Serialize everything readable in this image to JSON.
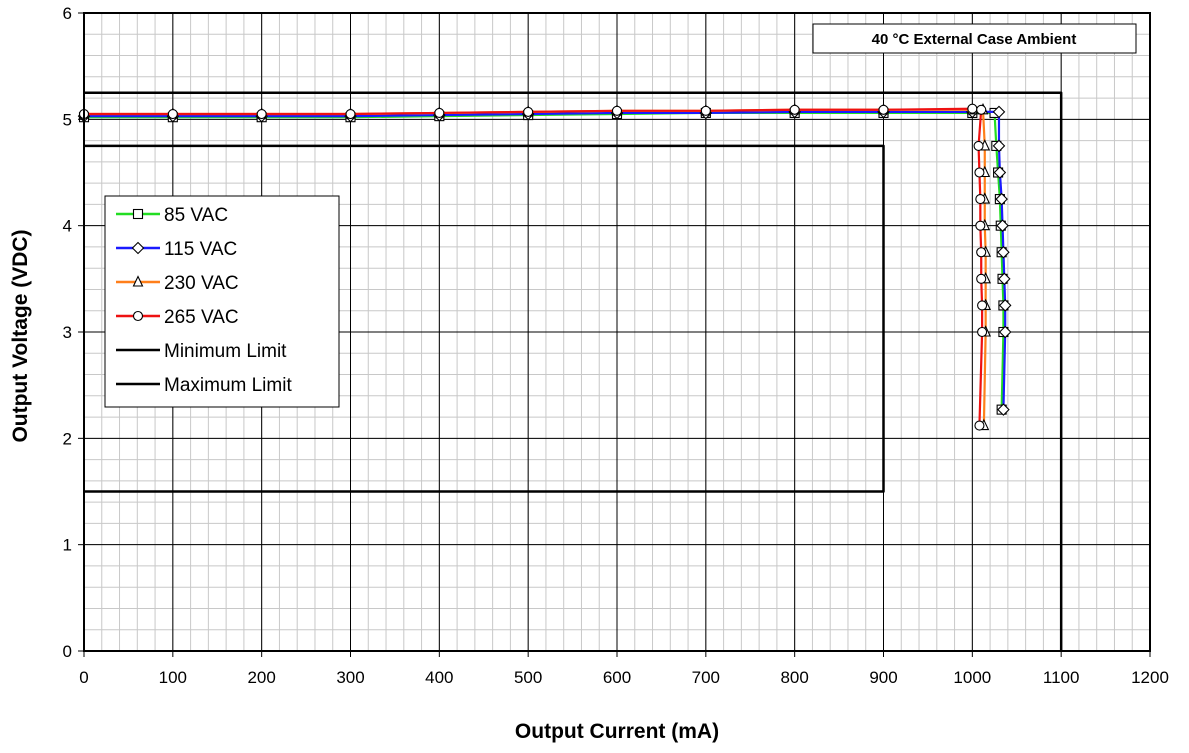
{
  "chart_data": {
    "type": "line",
    "title": "",
    "annotation": "40 °C External Case Ambient",
    "xlabel": "Output Current (mA)",
    "ylabel": "Output Voltage (VDC)",
    "xlim": [
      0,
      1200
    ],
    "ylim": [
      0,
      6
    ],
    "x_ticks": [
      "0",
      "100",
      "200",
      "300",
      "400",
      "500",
      "600",
      "700",
      "800",
      "900",
      "1000",
      "1100",
      "1200"
    ],
    "y_ticks": [
      "0",
      "1",
      "2",
      "3",
      "4",
      "5",
      "6"
    ],
    "grid": true,
    "legend_position": "left",
    "series": [
      {
        "name": "85 VAC",
        "color": "#22dd22",
        "marker": "square",
        "points": [
          [
            0,
            5.02
          ],
          [
            100,
            5.02
          ],
          [
            200,
            5.02
          ],
          [
            300,
            5.02
          ],
          [
            400,
            5.03
          ],
          [
            500,
            5.04
          ],
          [
            600,
            5.05
          ],
          [
            700,
            5.06
          ],
          [
            800,
            5.06
          ],
          [
            900,
            5.06
          ],
          [
            1000,
            5.06
          ],
          [
            1025,
            5.06
          ],
          [
            1027,
            4.75
          ],
          [
            1029,
            4.5
          ],
          [
            1031,
            4.25
          ],
          [
            1032,
            4.0
          ],
          [
            1033,
            3.75
          ],
          [
            1034,
            3.5
          ],
          [
            1035,
            3.25
          ],
          [
            1035,
            3.0
          ],
          [
            1033,
            2.27
          ]
        ]
      },
      {
        "name": "115 VAC",
        "color": "#1a1aff",
        "marker": "diamond",
        "points": [
          [
            0,
            5.03
          ],
          [
            100,
            5.03
          ],
          [
            200,
            5.03
          ],
          [
            300,
            5.03
          ],
          [
            400,
            5.04
          ],
          [
            500,
            5.05
          ],
          [
            600,
            5.06
          ],
          [
            700,
            5.06
          ],
          [
            800,
            5.07
          ],
          [
            900,
            5.07
          ],
          [
            1000,
            5.07
          ],
          [
            1030,
            5.07
          ],
          [
            1030,
            4.75
          ],
          [
            1031,
            4.5
          ],
          [
            1033,
            4.25
          ],
          [
            1034,
            4.0
          ],
          [
            1035,
            3.75
          ],
          [
            1036,
            3.5
          ],
          [
            1037,
            3.25
          ],
          [
            1037,
            3.0
          ],
          [
            1035,
            2.27
          ]
        ]
      },
      {
        "name": "230 VAC",
        "color": "#ff7f1a",
        "marker": "triangle",
        "points": [
          [
            0,
            5.05
          ],
          [
            100,
            5.05
          ],
          [
            200,
            5.05
          ],
          [
            300,
            5.05
          ],
          [
            400,
            5.06
          ],
          [
            500,
            5.07
          ],
          [
            600,
            5.08
          ],
          [
            700,
            5.08
          ],
          [
            800,
            5.09
          ],
          [
            900,
            5.09
          ],
          [
            1000,
            5.09
          ],
          [
            1012,
            5.09
          ],
          [
            1014,
            4.75
          ],
          [
            1014,
            4.5
          ],
          [
            1014,
            4.25
          ],
          [
            1014,
            4.0
          ],
          [
            1015,
            3.75
          ],
          [
            1015,
            3.5
          ],
          [
            1015,
            3.25
          ],
          [
            1015,
            3.0
          ],
          [
            1013,
            2.12
          ]
        ]
      },
      {
        "name": "265 VAC",
        "color": "#ee1111",
        "marker": "circle",
        "points": [
          [
            0,
            5.05
          ],
          [
            100,
            5.05
          ],
          [
            200,
            5.05
          ],
          [
            300,
            5.05
          ],
          [
            400,
            5.06
          ],
          [
            500,
            5.07
          ],
          [
            600,
            5.08
          ],
          [
            700,
            5.08
          ],
          [
            800,
            5.09
          ],
          [
            900,
            5.09
          ],
          [
            1000,
            5.1
          ],
          [
            1010,
            5.09
          ],
          [
            1007,
            4.75
          ],
          [
            1008,
            4.5
          ],
          [
            1009,
            4.25
          ],
          [
            1009,
            4.0
          ],
          [
            1010,
            3.75
          ],
          [
            1010,
            3.5
          ],
          [
            1011,
            3.25
          ],
          [
            1011,
            3.0
          ],
          [
            1008,
            2.12
          ]
        ]
      },
      {
        "name": "Minimum Limit",
        "color": "#000000",
        "marker": "none",
        "points": [
          [
            0,
            4.75
          ],
          [
            900,
            4.75
          ],
          [
            900,
            1.5
          ],
          [
            0,
            1.5
          ]
        ]
      },
      {
        "name": "Maximum Limit",
        "color": "#000000",
        "marker": "none",
        "points": [
          [
            0,
            5.25
          ],
          [
            1100,
            5.25
          ],
          [
            1100,
            0
          ]
        ]
      }
    ]
  }
}
